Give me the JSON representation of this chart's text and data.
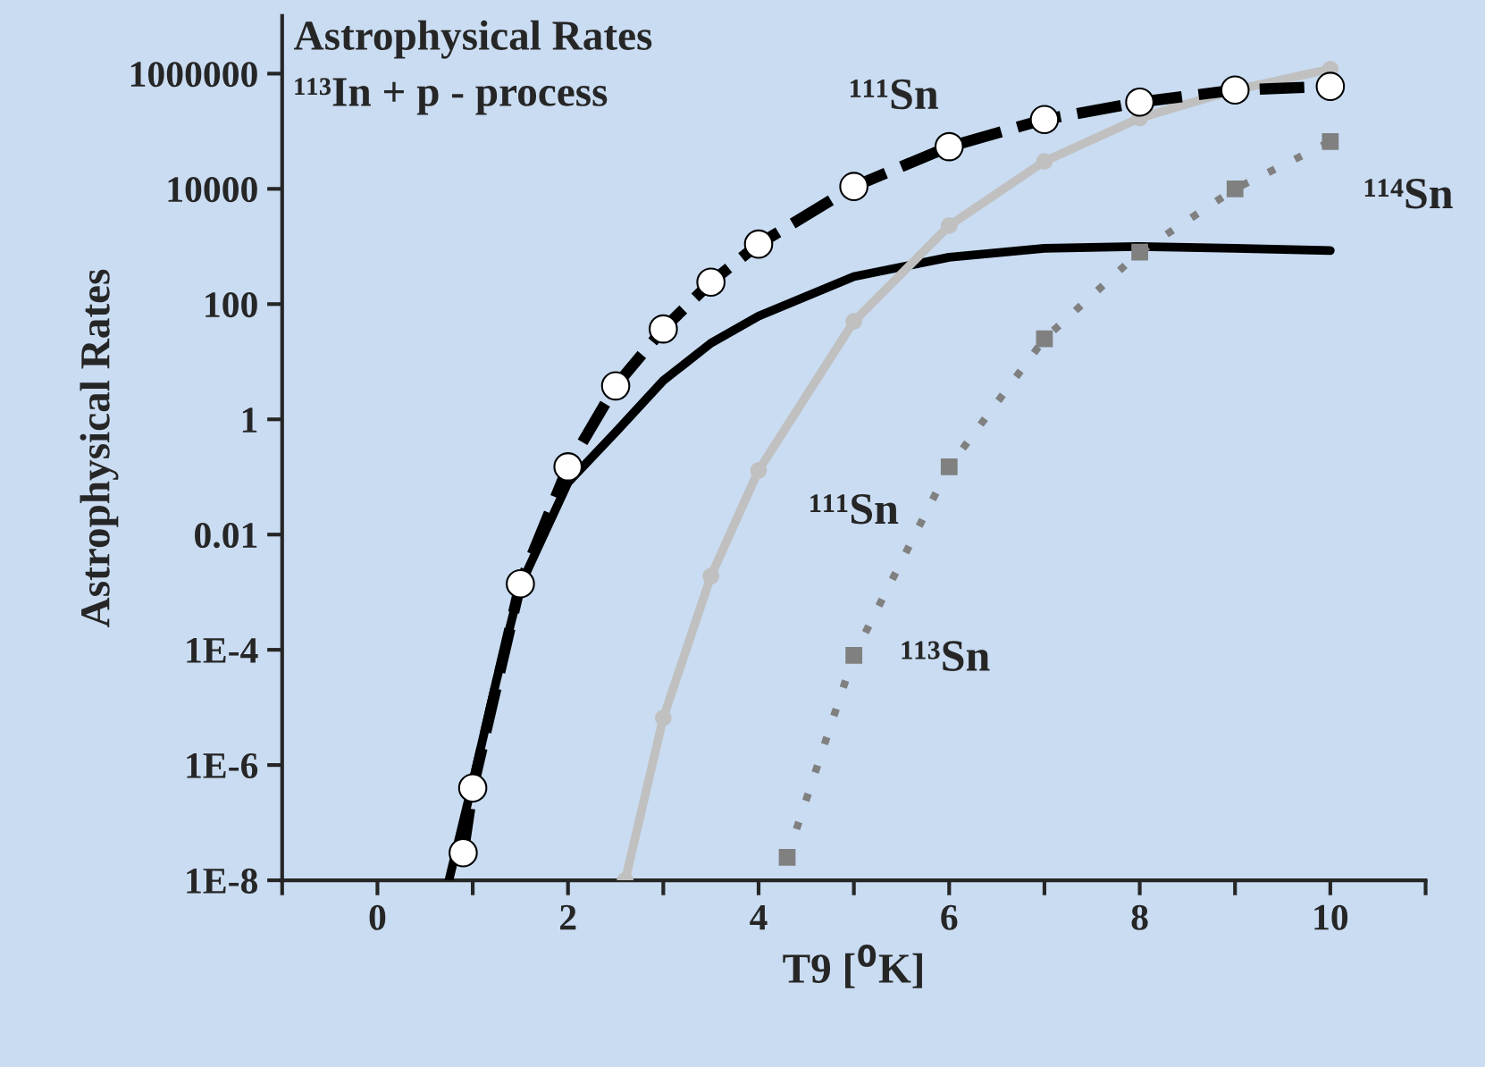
{
  "chart_data": {
    "type": "line",
    "title": "Astrophysical Rates",
    "subtitle": "¹¹³In + p - process",
    "xlabel": "T9 [$^{0}$K]",
    "ylabel": "Astrophysical Rates",
    "log": "y",
    "grid": false,
    "legend": false,
    "xlim": [
      -1,
      11
    ],
    "xticks": [
      {
        "value": -1,
        "label": null
      },
      0,
      {
        "value": 1,
        "label": null
      },
      2,
      {
        "value": 3,
        "label": null
      },
      4,
      {
        "value": 5,
        "label": null
      },
      6,
      {
        "value": 7,
        "label": null
      },
      8,
      {
        "value": 9,
        "label": null
      },
      10,
      {
        "value": 11,
        "label": null
      }
    ],
    "ylim": [
      1e-08,
      10000000.0
    ],
    "yticks": [
      {
        "value": 1e-08,
        "label": "1E-8"
      },
      {
        "value": 1e-06,
        "label": "1E-6"
      },
      {
        "value": 0.0001,
        "label": "1E-4"
      },
      {
        "value": 0.01,
        "label": "0.01"
      },
      {
        "value": 1,
        "label": "1"
      },
      {
        "value": 100,
        "label": "100"
      },
      {
        "value": 10000,
        "label": "10000"
      },
      {
        "value": 1000000,
        "label": "1000000"
      }
    ],
    "series": [
      {
        "color": "#000000",
        "line_style": "dashed",
        "marker": "circle",
        "x": [
          0.9,
          1,
          1.5,
          2,
          2.5,
          3,
          3.5,
          4,
          5,
          6,
          7,
          8,
          9,
          10
        ],
        "values": [
          3e-08,
          4e-07,
          0.0014,
          0.15,
          3.8,
          37,
          240,
          1100,
          11000,
          54000,
          160000,
          320000,
          520000,
          600000
        ]
      },
      {
        "color": "#000000",
        "line_style": "solid",
        "marker": "none",
        "x": [
          0.75,
          1,
          1.25,
          1.5,
          2,
          2.5,
          3,
          3.5,
          4,
          5,
          6,
          7,
          8,
          9,
          10
        ],
        "values": [
          1e-08,
          5e-07,
          3e-05,
          0.0013,
          0.08,
          0.6,
          4.7,
          21,
          62,
          300,
          650,
          930,
          1000,
          930,
          850
        ]
      },
      {
        "color": "#c0c0c0",
        "line_style": "solid",
        "marker": "circle",
        "x": [
          2.6,
          3,
          3.5,
          4,
          5,
          6,
          7,
          8,
          9,
          10
        ],
        "values": [
          1e-08,
          6.6e-06,
          0.0019,
          0.13,
          50,
          2300,
          30000,
          170000,
          520000,
          1200000
        ]
      },
      {
        "color": "#808080",
        "line_style": "dotted",
        "marker": "square",
        "x": [
          4.3,
          5,
          6,
          7,
          8,
          9,
          10
        ],
        "values": [
          2.5e-08,
          8e-05,
          0.15,
          25,
          800,
          10000,
          66000
        ]
      }
    ],
    "annotations": [
      "¹¹¹Sn",
      "¹¹⁴Sn",
      "¹¹¹Sn",
      "¹¹³Sn"
    ]
  }
}
